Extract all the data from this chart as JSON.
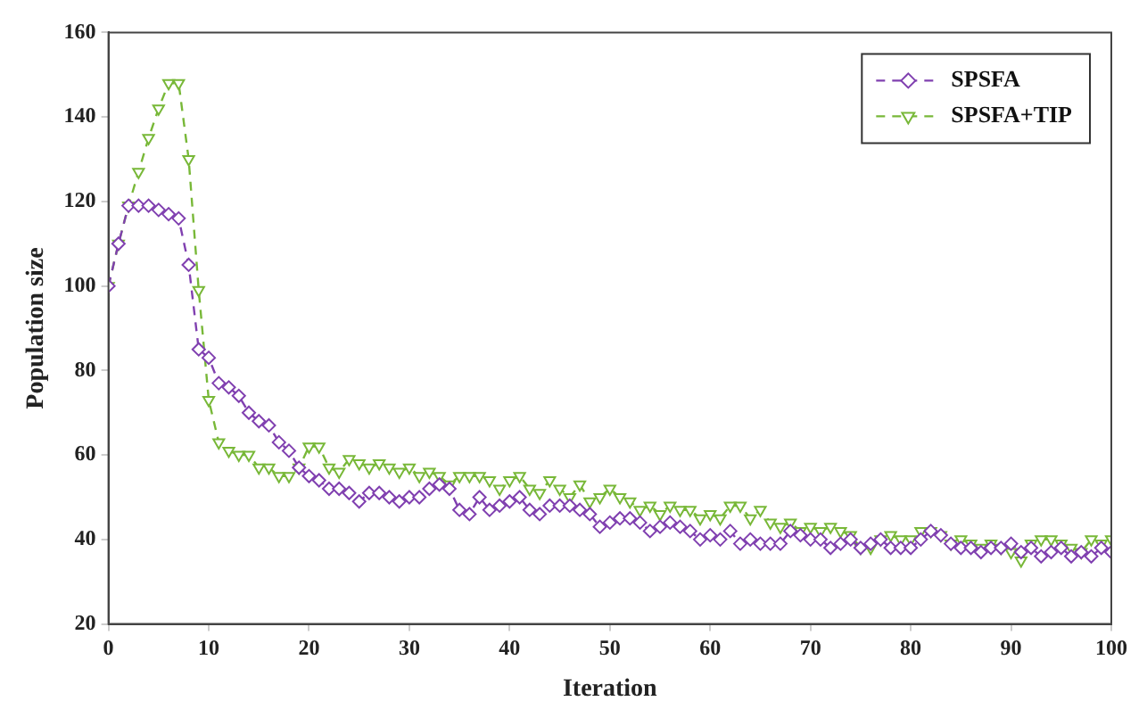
{
  "chart_data": {
    "type": "line",
    "xlabel": "Iteration",
    "ylabel": "Population size",
    "x": [
      0,
      1,
      2,
      3,
      4,
      5,
      6,
      7,
      8,
      9,
      10,
      11,
      12,
      13,
      14,
      15,
      16,
      17,
      18,
      19,
      20,
      21,
      22,
      23,
      24,
      25,
      26,
      27,
      28,
      29,
      30,
      31,
      32,
      33,
      34,
      35,
      36,
      37,
      38,
      39,
      40,
      41,
      42,
      43,
      44,
      45,
      46,
      47,
      48,
      49,
      50,
      51,
      52,
      53,
      54,
      55,
      56,
      57,
      58,
      59,
      60,
      61,
      62,
      63,
      64,
      65,
      66,
      67,
      68,
      69,
      70,
      71,
      72,
      73,
      74,
      75,
      76,
      77,
      78,
      79,
      80,
      81,
      82,
      83,
      84,
      85,
      86,
      87,
      88,
      89,
      90,
      91,
      92,
      93,
      94,
      95,
      96,
      97,
      98,
      99,
      100
    ],
    "series": [
      {
        "name": "SPSFA",
        "color": "#8040b0",
        "marker": "diamond",
        "values": [
          100,
          110,
          119,
          119,
          119,
          118,
          117,
          116,
          105,
          85,
          83,
          77,
          76,
          74,
          70,
          68,
          67,
          63,
          61,
          57,
          55,
          54,
          52,
          52,
          51,
          49,
          51,
          51,
          50,
          49,
          50,
          50,
          52,
          53,
          52,
          47,
          46,
          50,
          47,
          48,
          49,
          50,
          47,
          46,
          48,
          48,
          48,
          47,
          46,
          43,
          44,
          45,
          45,
          44,
          42,
          43,
          44,
          43,
          42,
          40,
          41,
          40,
          42,
          39,
          40,
          39,
          39,
          39,
          42,
          41,
          40,
          40,
          38,
          39,
          40,
          38,
          39,
          40,
          38,
          38,
          38,
          40,
          42,
          41,
          39,
          38,
          38,
          37,
          38,
          38,
          39,
          37,
          38,
          36,
          37,
          38,
          36,
          37,
          36,
          38,
          37
        ]
      },
      {
        "name": "SPSFA+TIP",
        "color": "#78b838",
        "marker": "triangle",
        "values": [
          100,
          110,
          119,
          127,
          135,
          142,
          148,
          148,
          130,
          99,
          73,
          63,
          61,
          60,
          60,
          57,
          57,
          55,
          55,
          57,
          62,
          62,
          57,
          56,
          59,
          58,
          57,
          58,
          57,
          56,
          57,
          55,
          56,
          55,
          53,
          55,
          55,
          55,
          54,
          52,
          54,
          55,
          52,
          51,
          54,
          52,
          50,
          53,
          49,
          50,
          52,
          50,
          49,
          47,
          48,
          46,
          48,
          47,
          47,
          45,
          46,
          45,
          48,
          48,
          45,
          47,
          44,
          43,
          44,
          42,
          43,
          42,
          43,
          42,
          41,
          38,
          38,
          40,
          41,
          40,
          40,
          42,
          42,
          41,
          39,
          40,
          39,
          38,
          39,
          38,
          37,
          35,
          39,
          40,
          40,
          39,
          38,
          37,
          40,
          39,
          40
        ]
      }
    ],
    "xlim": [
      0,
      100
    ],
    "xticks": [
      0,
      10,
      20,
      30,
      40,
      50,
      60,
      70,
      80,
      90,
      100
    ],
    "ylim": [
      20,
      160
    ],
    "yticks": [
      20,
      40,
      60,
      80,
      100,
      120,
      140,
      160
    ],
    "line_style": "dashed",
    "legend": "top right",
    "grid": false
  }
}
